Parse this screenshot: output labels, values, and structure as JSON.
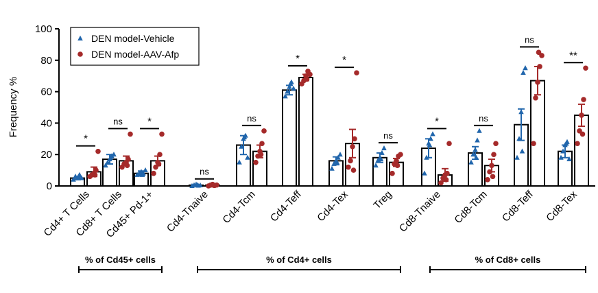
{
  "chart_data": {
    "type": "bar",
    "ylabel": "Frequency %",
    "ylim": [
      0,
      100
    ],
    "yticks": [
      0,
      20,
      40,
      60,
      80,
      100
    ],
    "categories": [
      "Cd4+ T Cells",
      "Cd8+ T Cells",
      "Cd45+ Pd-1+",
      "Cd4-Tnaive",
      "Cd4-Tcm",
      "Cd4-Teff",
      "Cd4-Tex",
      "Treg",
      "Cd8-Tnaive",
      "Cd8-Tcm",
      "Cd8-Teff",
      "Cd8-Tex"
    ],
    "series": [
      {
        "name": "DEN model-Vehicle",
        "color": "#2166ac",
        "marker": "triangle",
        "means": [
          5,
          17,
          8,
          0.5,
          26,
          61,
          16,
          18,
          24,
          21,
          39,
          22
        ],
        "sems": [
          1,
          3,
          1.5,
          0.3,
          6,
          3,
          2.5,
          3,
          6,
          4,
          10,
          4
        ],
        "points": [
          [
            4,
            6,
            5,
            7,
            5,
            6
          ],
          [
            13,
            15,
            17,
            19,
            20,
            18
          ],
          [
            7,
            8,
            9,
            8,
            10,
            7
          ],
          [
            0,
            0.5,
            1,
            0.2,
            0.4,
            0.6
          ],
          [
            15,
            25,
            30,
            32,
            18,
            31
          ],
          [
            57,
            60,
            63,
            66,
            62,
            65
          ],
          [
            11,
            14,
            16,
            18,
            20,
            15
          ],
          [
            13,
            16,
            18,
            21,
            24,
            17
          ],
          [
            8,
            18,
            27,
            30,
            33,
            26
          ],
          [
            15,
            20,
            23,
            29,
            35,
            18
          ],
          [
            18,
            30,
            47,
            72,
            75,
            22
          ],
          [
            18,
            22,
            26,
            28,
            17,
            27
          ]
        ]
      },
      {
        "name": "DEN model-AAV-Afp",
        "color": "#a52a2a",
        "marker": "circle",
        "means": [
          9,
          16,
          16,
          0.5,
          22,
          69,
          27,
          15,
          7,
          13,
          67,
          45
        ],
        "sems": [
          3,
          3,
          3,
          0.3,
          4,
          2,
          9,
          2.5,
          4,
          4,
          9,
          7
        ],
        "points": [
          [
            6,
            7,
            8,
            10,
            22,
            7
          ],
          [
            12,
            14,
            15,
            17,
            33,
            13
          ],
          [
            8,
            12,
            15,
            20,
            33,
            14
          ],
          [
            0,
            0.5,
            1,
            0.3,
            0.6,
            0.4
          ],
          [
            15,
            19,
            22,
            27,
            35,
            20
          ],
          [
            65,
            67,
            70,
            73,
            71,
            68
          ],
          [
            12,
            16,
            25,
            30,
            72,
            10
          ],
          [
            8,
            14,
            16,
            19,
            20,
            13
          ],
          [
            2,
            5,
            7,
            8,
            27,
            4
          ],
          [
            4,
            9,
            13,
            20,
            27,
            6
          ],
          [
            27,
            56,
            66,
            76,
            83,
            85
          ],
          [
            27,
            35,
            45,
            55,
            75,
            33
          ]
        ]
      }
    ],
    "significance": [
      "*",
      "ns",
      "*",
      "ns",
      "ns",
      "*",
      "*",
      "ns",
      "*",
      "ns",
      "ns",
      "**"
    ],
    "groups": [
      {
        "label": "% of Cd45+ cells",
        "from": 0,
        "to": 2
      },
      {
        "label": "% of Cd4+ cells",
        "from": 3,
        "to": 7
      },
      {
        "label": "% of Cd8+ cells",
        "from": 8,
        "to": 11
      }
    ],
    "legend_position": "top-left"
  }
}
